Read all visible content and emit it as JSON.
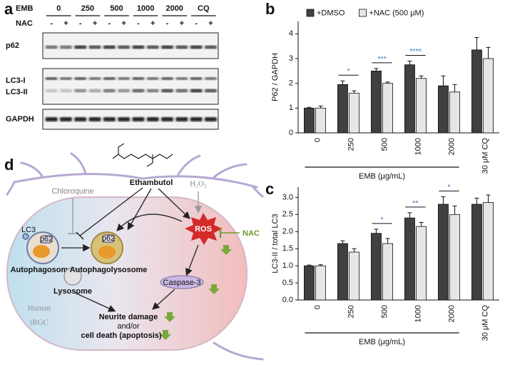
{
  "panel_labels": [
    "a",
    "b",
    "c",
    "d"
  ],
  "blot": {
    "emb_label": "EMB",
    "nac_label": "NAC",
    "groups": [
      "0",
      "250",
      "500",
      "1000",
      "2000",
      "CQ"
    ],
    "nac_signs": [
      "-",
      "+"
    ],
    "rows": [
      "p62",
      "LC3-I",
      "LC3-II",
      "GAPDH"
    ]
  },
  "chart_data": [
    {
      "type": "bar",
      "y_label": "P62 / GAPDH",
      "x_label": "EMB (μg/mL)",
      "categories": [
        "0",
        "250",
        "500",
        "1000",
        "2000",
        "30 μM CQ"
      ],
      "series": [
        {
          "name": "+DMSO",
          "color": "#404040",
          "values": [
            1.0,
            1.95,
            2.5,
            2.75,
            1.9,
            3.35
          ],
          "errors": [
            0.03,
            0.15,
            0.1,
            0.15,
            0.4,
            0.5
          ]
        },
        {
          "name": "+NAC (500 μM)",
          "color": "#e6e6e6",
          "values": [
            1.0,
            1.6,
            2.0,
            2.2,
            1.65,
            3.0
          ],
          "errors": [
            0.08,
            0.1,
            0.05,
            0.1,
            0.3,
            0.45
          ]
        }
      ],
      "significance": [
        null,
        "*",
        "***",
        "****",
        null,
        null
      ],
      "ylim": [
        0,
        4.5
      ],
      "yticks": [
        0,
        1,
        2,
        3,
        4
      ],
      "legend": "top"
    },
    {
      "type": "bar",
      "y_label": "LC3-II / total LC3",
      "x_label": "EMB (μg/mL)",
      "categories": [
        "0",
        "250",
        "500",
        "1000",
        "2000",
        "30 μM CQ"
      ],
      "series": [
        {
          "color": "#404040",
          "values": [
            1.0,
            1.65,
            1.95,
            2.4,
            2.8,
            2.8
          ],
          "errors": [
            0.02,
            0.08,
            0.12,
            0.15,
            0.22,
            0.18
          ]
        },
        {
          "color": "#e6e6e6",
          "values": [
            1.0,
            1.4,
            1.65,
            2.15,
            2.5,
            2.85
          ],
          "errors": [
            0.03,
            0.1,
            0.15,
            0.12,
            0.25,
            0.22
          ]
        }
      ],
      "significance": [
        null,
        null,
        "*",
        "**",
        "*",
        null
      ],
      "ylim": [
        0,
        3.3
      ],
      "yticks": [
        {
          "value": 0,
          "label": "0.0"
        },
        0.5,
        {
          "value": 1,
          "label": "1.0"
        },
        1.5,
        {
          "value": 2,
          "label": "2.0"
        },
        2.5,
        {
          "value": 3,
          "label": "3.0"
        }
      ]
    }
  ],
  "diagram": {
    "drug": "Ethambutol",
    "inhibitor": "Chloroquine",
    "peroxide": "H₂O₂",
    "lc3": "LC3",
    "p62": "p62",
    "autophagosome": "Autophagosome",
    "lysosome": "Lysosome",
    "autophagolysosome": "Autophagolysosome",
    "ros": "ROS",
    "nac": "NAC",
    "caspase": "Caspase-3",
    "cell": [
      "Human",
      "iRGC"
    ],
    "outcome": [
      "Neurite damage",
      "and/or",
      "cell death (apoptosis)"
    ]
  }
}
